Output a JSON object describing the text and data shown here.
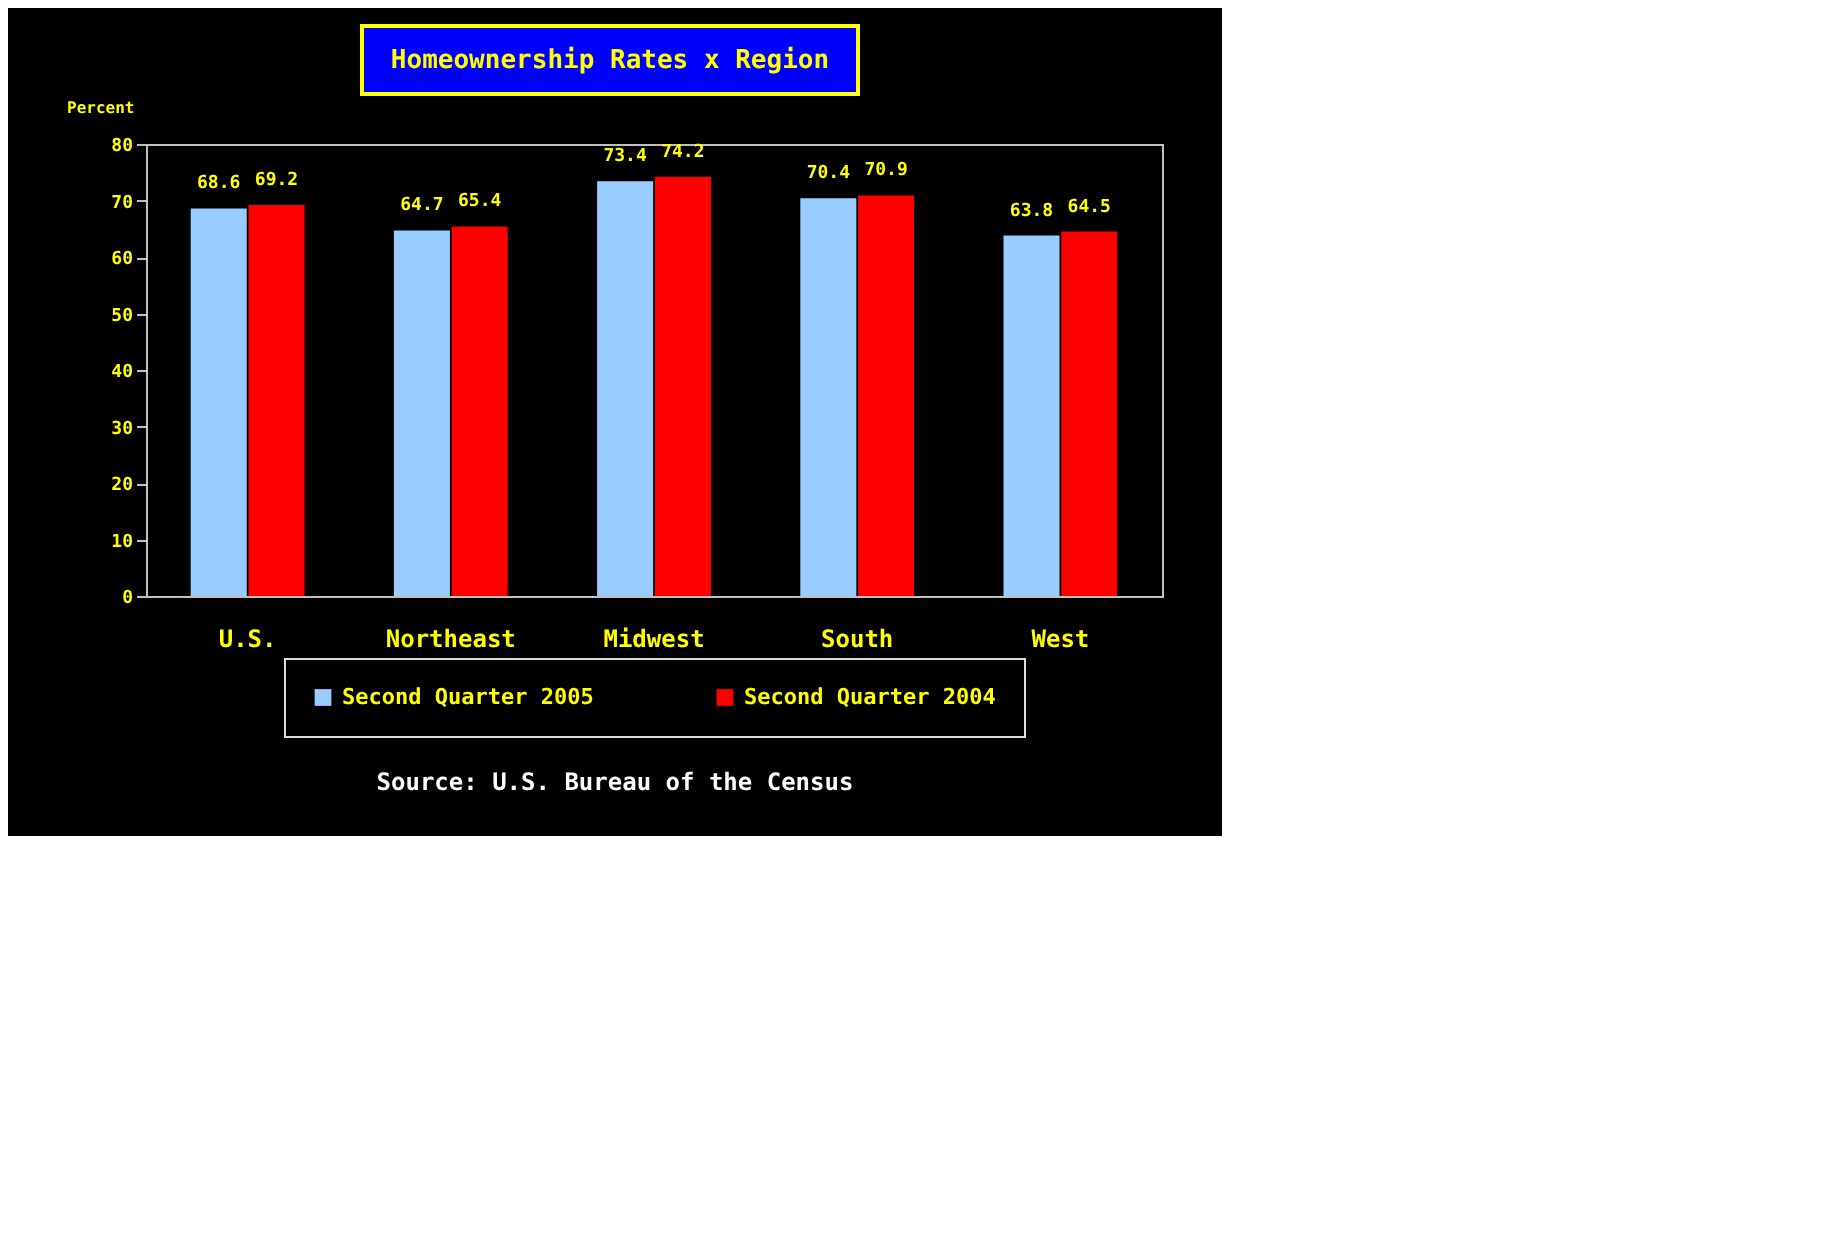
{
  "chart_data": {
    "type": "bar",
    "title": "Homeownership Rates x Region",
    "ylabel": "Percent",
    "categories": [
      "U.S.",
      "Northeast",
      "Midwest",
      "South",
      "West"
    ],
    "series": [
      {
        "name": "Second Quarter 2005",
        "color": "#99ccff",
        "values": [
          68.6,
          64.7,
          73.4,
          70.4,
          63.8
        ]
      },
      {
        "name": "Second Quarter 2004",
        "color": "#ff0000",
        "values": [
          69.2,
          65.4,
          74.2,
          70.9,
          64.5
        ]
      }
    ],
    "ylim": [
      0,
      80
    ],
    "yticks": [
      0,
      10,
      20,
      30,
      40,
      50,
      60,
      70,
      80
    ],
    "grid": false,
    "legend": "bottom",
    "data_labels": true,
    "annotations": [
      "Source: U.S. Bureau of the Census"
    ]
  }
}
